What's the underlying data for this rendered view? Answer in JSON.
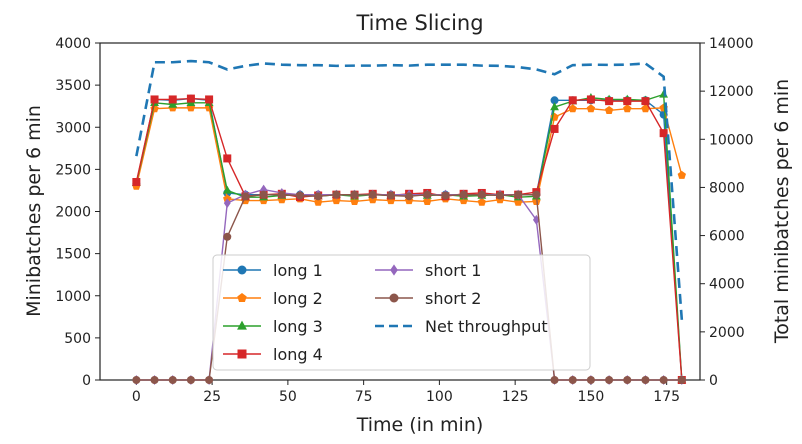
{
  "chart_data": {
    "type": "line",
    "title": "Time Slicing",
    "xlabel": "Time (in min)",
    "ylabel_left": "Minibatches per 6 min",
    "ylabel_right": "Total minibatches per 6 min",
    "xlim": [
      -12,
      186
    ],
    "ylim_left": [
      0,
      4000
    ],
    "ylim_right": [
      0,
      14000
    ],
    "x_ticks": [
      0,
      25,
      50,
      75,
      100,
      125,
      150,
      175
    ],
    "y_ticks_left": [
      0,
      500,
      1000,
      1500,
      2000,
      2500,
      3000,
      3500,
      4000
    ],
    "y_ticks_right": [
      0,
      2000,
      4000,
      6000,
      8000,
      10000,
      12000,
      14000
    ],
    "grid": false,
    "legend_position": "bottom-center",
    "legend_columns": 2,
    "series": [
      {
        "name": "long 1",
        "color": "#1f77b4",
        "marker": "circle",
        "axis": "left",
        "x": [
          0,
          6,
          12,
          18,
          24,
          30,
          36,
          42,
          48,
          54,
          60,
          66,
          72,
          78,
          84,
          90,
          96,
          102,
          108,
          114,
          120,
          126,
          132,
          138,
          144,
          150,
          156,
          162,
          168,
          174,
          180
        ],
        "y": [
          2330,
          3330,
          3320,
          3340,
          3320,
          2220,
          2200,
          2200,
          2200,
          2200,
          2200,
          2200,
          2200,
          2200,
          2200,
          2200,
          2200,
          2200,
          2200,
          2200,
          2200,
          2200,
          2200,
          3320,
          3320,
          3320,
          3320,
          3320,
          3320,
          3150,
          0
        ]
      },
      {
        "name": "long 2",
        "color": "#ff7f0e",
        "marker": "pentagon",
        "axis": "left",
        "x": [
          0,
          6,
          12,
          18,
          24,
          30,
          36,
          42,
          48,
          54,
          60,
          66,
          72,
          78,
          84,
          90,
          96,
          102,
          108,
          114,
          120,
          126,
          132,
          138,
          144,
          150,
          156,
          162,
          168,
          174,
          180
        ],
        "y": [
          2300,
          3220,
          3230,
          3230,
          3230,
          2150,
          2130,
          2130,
          2140,
          2150,
          2110,
          2130,
          2120,
          2140,
          2130,
          2130,
          2120,
          2150,
          2130,
          2110,
          2140,
          2110,
          2120,
          3120,
          3220,
          3220,
          3200,
          3220,
          3220,
          3230,
          2430
        ]
      },
      {
        "name": "long 3",
        "color": "#2ca02c",
        "marker": "triangle",
        "axis": "left",
        "x": [
          0,
          6,
          12,
          18,
          24,
          30,
          36,
          42,
          48,
          54,
          60,
          66,
          72,
          78,
          84,
          90,
          96,
          102,
          108,
          114,
          120,
          126,
          132,
          138,
          144,
          150,
          156,
          162,
          168,
          174,
          180
        ],
        "y": [
          2340,
          3290,
          3270,
          3290,
          3290,
          2250,
          2170,
          2170,
          2190,
          2200,
          2180,
          2200,
          2180,
          2200,
          2190,
          2200,
          2190,
          2200,
          2180,
          2190,
          2200,
          2170,
          2180,
          3240,
          3310,
          3350,
          3330,
          3330,
          3320,
          3390,
          0
        ]
      },
      {
        "name": "long 4",
        "color": "#d62728",
        "marker": "square",
        "axis": "left",
        "x": [
          0,
          6,
          12,
          18,
          24,
          30,
          36,
          42,
          48,
          54,
          60,
          66,
          72,
          78,
          84,
          90,
          96,
          102,
          108,
          114,
          120,
          126,
          132,
          138,
          144,
          150,
          156,
          162,
          168,
          174,
          180
        ],
        "y": [
          2350,
          3330,
          3330,
          3340,
          3330,
          2630,
          2180,
          2200,
          2210,
          2170,
          2190,
          2200,
          2200,
          2210,
          2190,
          2210,
          2220,
          2180,
          2210,
          2220,
          2200,
          2200,
          2230,
          2980,
          3320,
          3330,
          3310,
          3310,
          3310,
          2930,
          0
        ]
      },
      {
        "name": "short 1",
        "color": "#9467bd",
        "marker": "diamond",
        "axis": "left",
        "x": [
          0,
          6,
          12,
          18,
          24,
          30,
          36,
          42,
          48,
          54,
          60,
          66,
          72,
          78,
          84,
          90,
          96,
          102,
          108,
          114,
          120,
          126,
          132,
          138,
          144,
          150,
          156,
          162,
          168,
          174,
          180
        ],
        "y": [
          0,
          0,
          0,
          0,
          0,
          2100,
          2200,
          2260,
          2220,
          2200,
          2200,
          2200,
          2200,
          2200,
          2200,
          2200,
          2200,
          2200,
          2200,
          2200,
          2200,
          2200,
          1900,
          0,
          0,
          0,
          0,
          0,
          0,
          0,
          0
        ]
      },
      {
        "name": "short 2",
        "color": "#8c564b",
        "marker": "circle",
        "axis": "left",
        "x": [
          0,
          6,
          12,
          18,
          24,
          30,
          36,
          42,
          48,
          54,
          60,
          66,
          72,
          78,
          84,
          90,
          96,
          102,
          108,
          114,
          120,
          126,
          132,
          138,
          144,
          150,
          156,
          162,
          168,
          174,
          180
        ],
        "y": [
          0,
          0,
          0,
          0,
          0,
          1700,
          2180,
          2200,
          2200,
          2190,
          2180,
          2200,
          2200,
          2200,
          2190,
          2180,
          2200,
          2190,
          2200,
          2200,
          2190,
          2200,
          2200,
          0,
          0,
          0,
          0,
          0,
          0,
          0,
          0
        ]
      },
      {
        "name": "Net throughput",
        "color": "#1f77b4",
        "marker": "none",
        "dash": true,
        "axis": "right",
        "x": [
          0,
          6,
          12,
          18,
          24,
          30,
          36,
          42,
          48,
          54,
          60,
          66,
          72,
          78,
          84,
          90,
          96,
          102,
          108,
          114,
          120,
          126,
          132,
          138,
          144,
          150,
          156,
          162,
          168,
          174,
          180
        ],
        "y": [
          9300,
          13200,
          13200,
          13250,
          13200,
          12900,
          13050,
          13150,
          13100,
          13080,
          13080,
          13050,
          13060,
          13060,
          13080,
          13060,
          13100,
          13100,
          13100,
          13060,
          13050,
          13000,
          12900,
          12700,
          13080,
          13100,
          13090,
          13100,
          13150,
          12600,
          2500
        ]
      }
    ]
  }
}
